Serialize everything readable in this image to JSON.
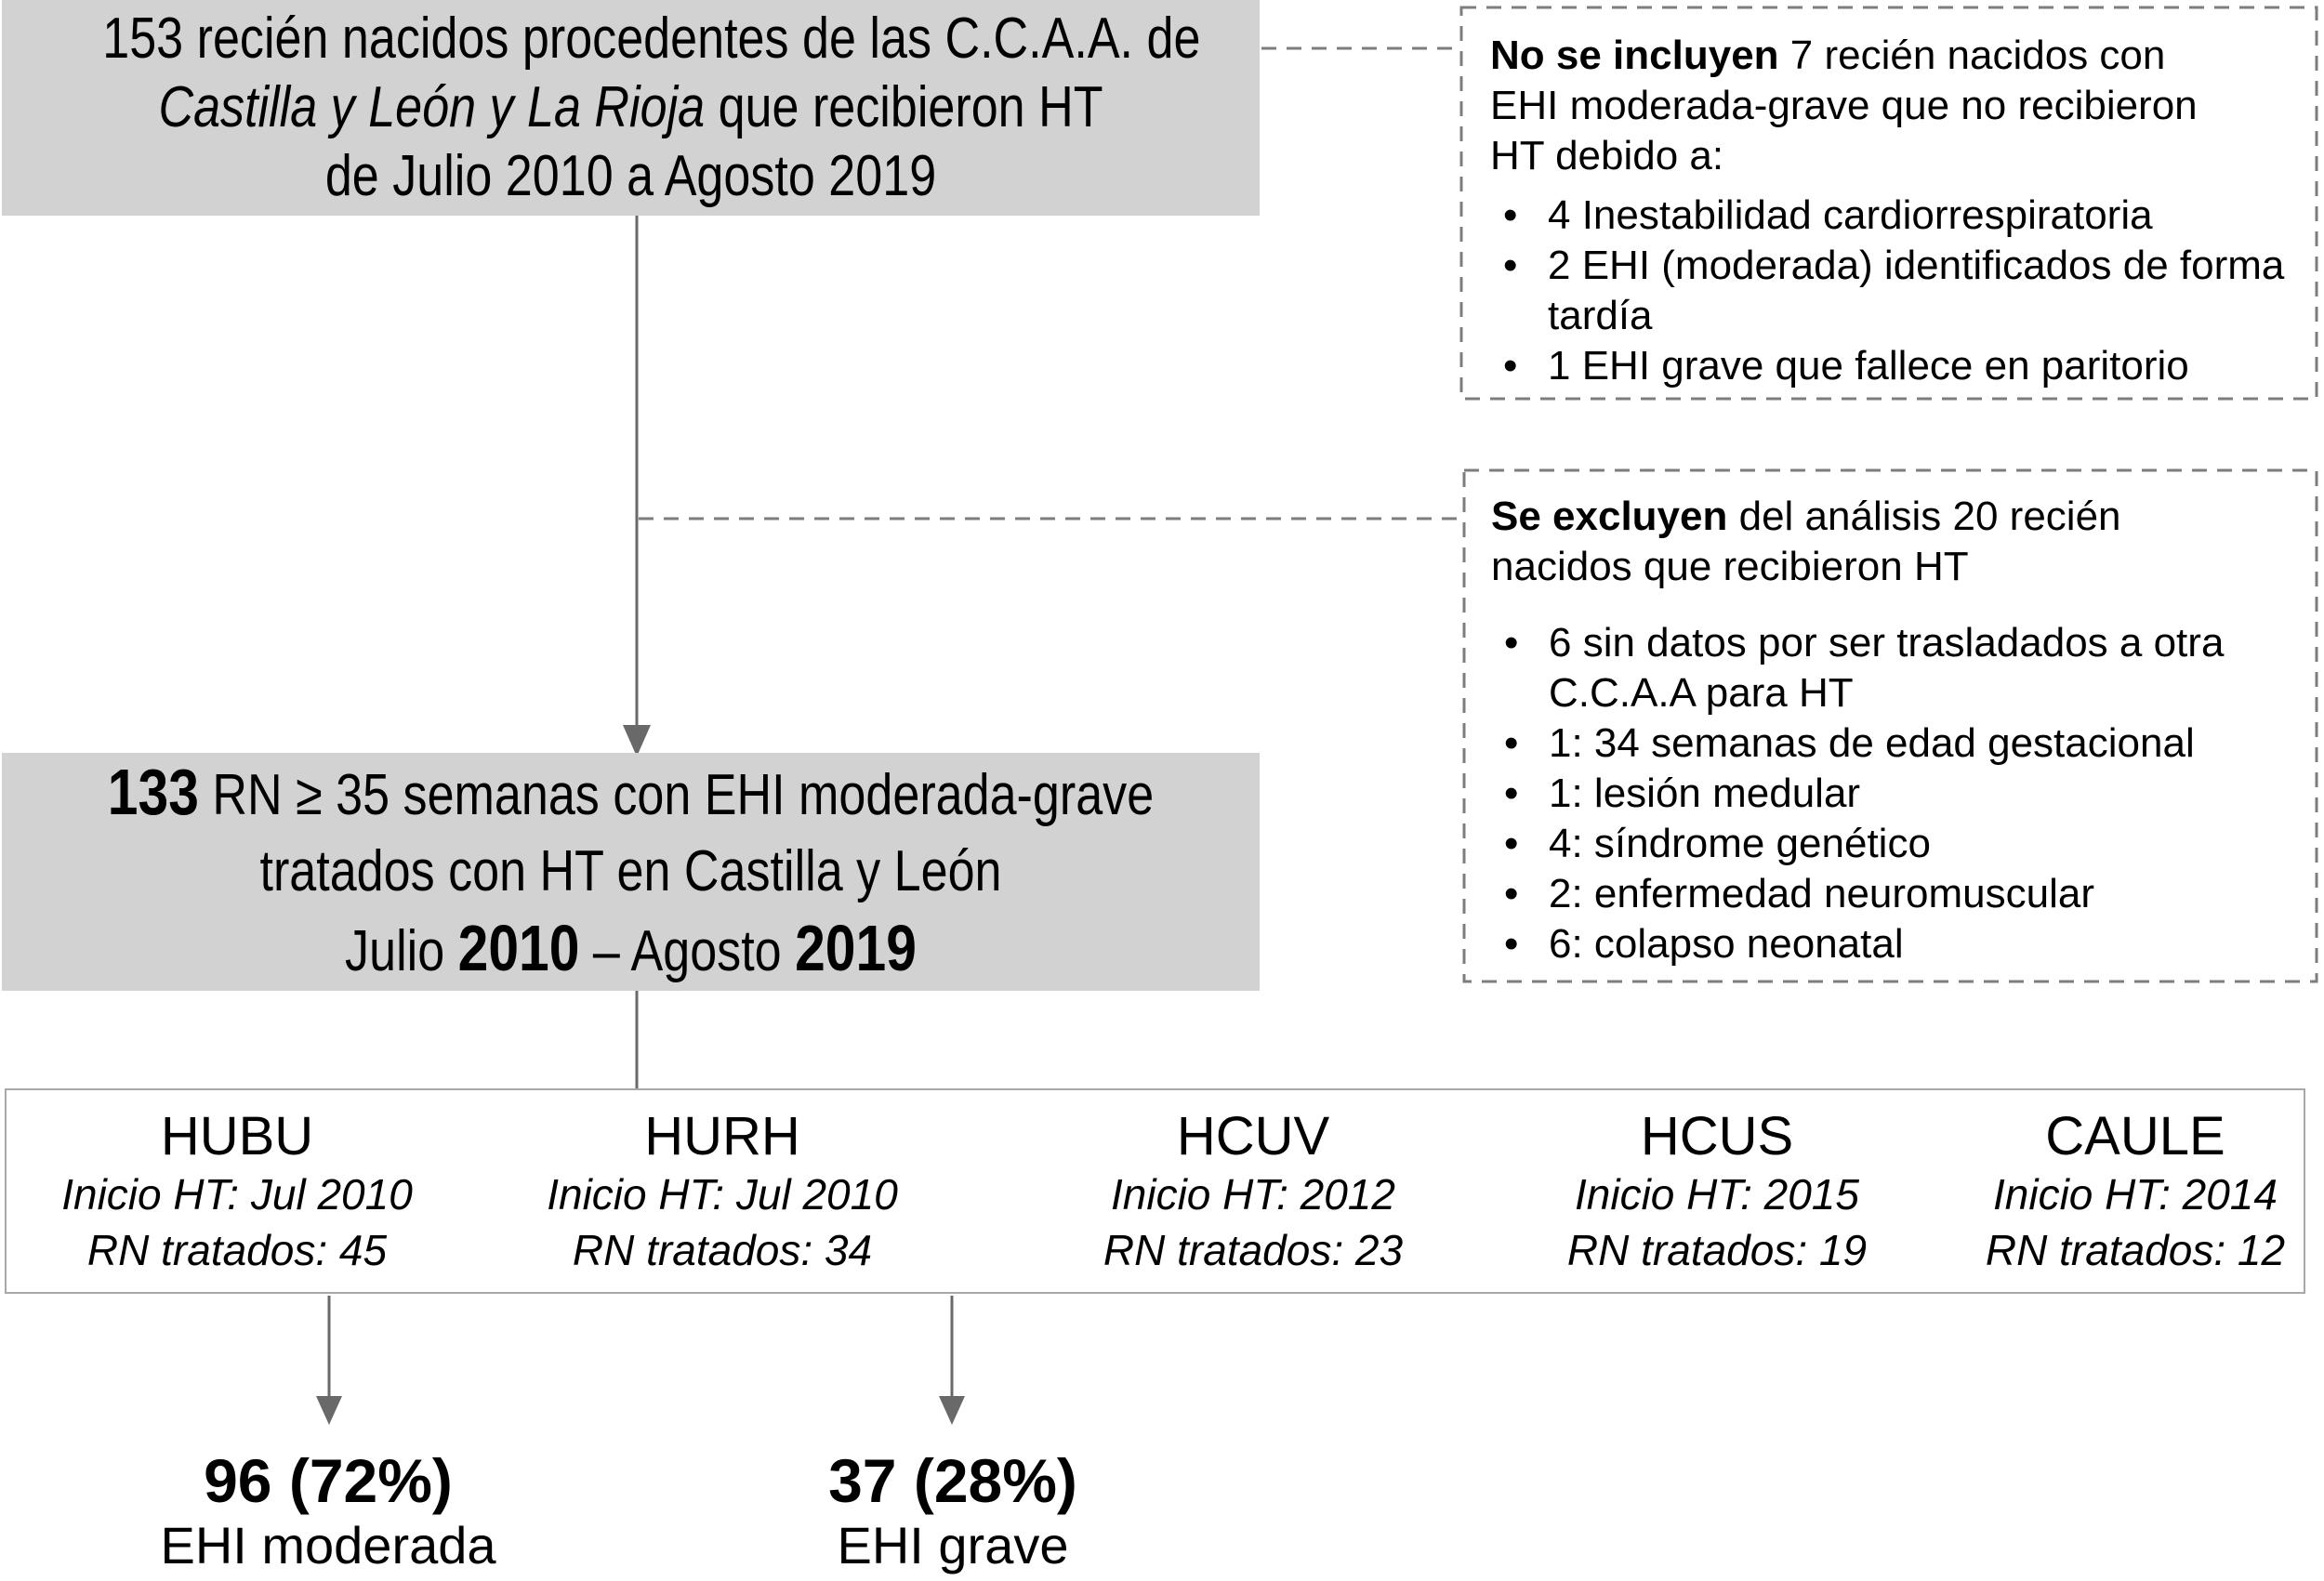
{
  "colors": {
    "background": "#ffffff",
    "text": "#000000",
    "box_fill": "#d2d2d2",
    "dashed_border": "#7d7d7d",
    "arrow": "#696969",
    "hospital_border": "#a8a8a8"
  },
  "top_box": {
    "lines": [
      [
        {
          "t": "153 recién nacidos procedentes de las C.C.A.A. de"
        }
      ],
      [
        {
          "t": "Castilla y León y La Rioja",
          "i": true
        },
        {
          "t": " que recibieron HT"
        }
      ],
      [
        {
          "t": "de Julio 2010 a Agosto 2019"
        }
      ]
    ]
  },
  "not_included_box": {
    "title_lines": [
      [
        {
          "t": "No se incluyen",
          "b": true
        },
        {
          "t": " 7 recién nacidos con"
        }
      ],
      [
        {
          "t": "EHI moderada-grave que no recibieron"
        }
      ],
      [
        {
          "t": "HT debido a:"
        }
      ]
    ],
    "bullet_marker": "•",
    "bullets": [
      "4 Inestabilidad cardiorrespiratoria",
      "2 EHI (moderada) identificados de forma tardía",
      "1 EHI grave que fallece en paritorio"
    ]
  },
  "excluded_box": {
    "title_lines": [
      [
        {
          "t": "Se excluyen",
          "b": true
        },
        {
          "t": " del análisis 20 recién"
        }
      ],
      [
        {
          "t": "nacidos que recibieron HT"
        }
      ]
    ],
    "bullet_marker": "•",
    "bullets": [
      "6 sin datos por ser trasladados a otra C.C.A.A para HT",
      "1: 34 semanas de edad gestacional",
      "1: lesión medular",
      "4: síndrome genético",
      "2: enfermedad neuromuscular",
      "6: colapso neonatal"
    ]
  },
  "middle_box": {
    "lines": [
      [
        {
          "t": "133",
          "b": true,
          "big": true
        },
        {
          "t": " RN ≥ 35 semanas con EHI moderada-grave"
        }
      ],
      [
        {
          "t": "tratados con HT en Castilla y León"
        }
      ],
      [
        {
          "t": "Julio "
        },
        {
          "t": "2010",
          "b": true,
          "big": true
        },
        {
          "t": " – Agosto "
        },
        {
          "t": "2019",
          "b": true,
          "big": true
        }
      ]
    ]
  },
  "hospitals": [
    {
      "name": "HUBU",
      "inicio": "Inicio HT: Jul 2010",
      "tratados": "RN tratados: 45"
    },
    {
      "name": "HURH",
      "inicio": "Inicio HT: Jul 2010",
      "tratados": "RN tratados: 34"
    },
    {
      "name": "HCUV",
      "inicio": "Inicio HT: 2012",
      "tratados": "RN tratados: 23"
    },
    {
      "name": "HCUS",
      "inicio": "Inicio HT: 2015",
      "tratados": "RN tratados: 19"
    },
    {
      "name": "CAULE",
      "inicio": "Inicio HT: 2014",
      "tratados": "RN tratados: 12"
    }
  ],
  "outcomes": [
    {
      "value": "96 (72%)",
      "label": "EHI moderada"
    },
    {
      "value": "37 (28%)",
      "label": "EHI grave"
    }
  ]
}
